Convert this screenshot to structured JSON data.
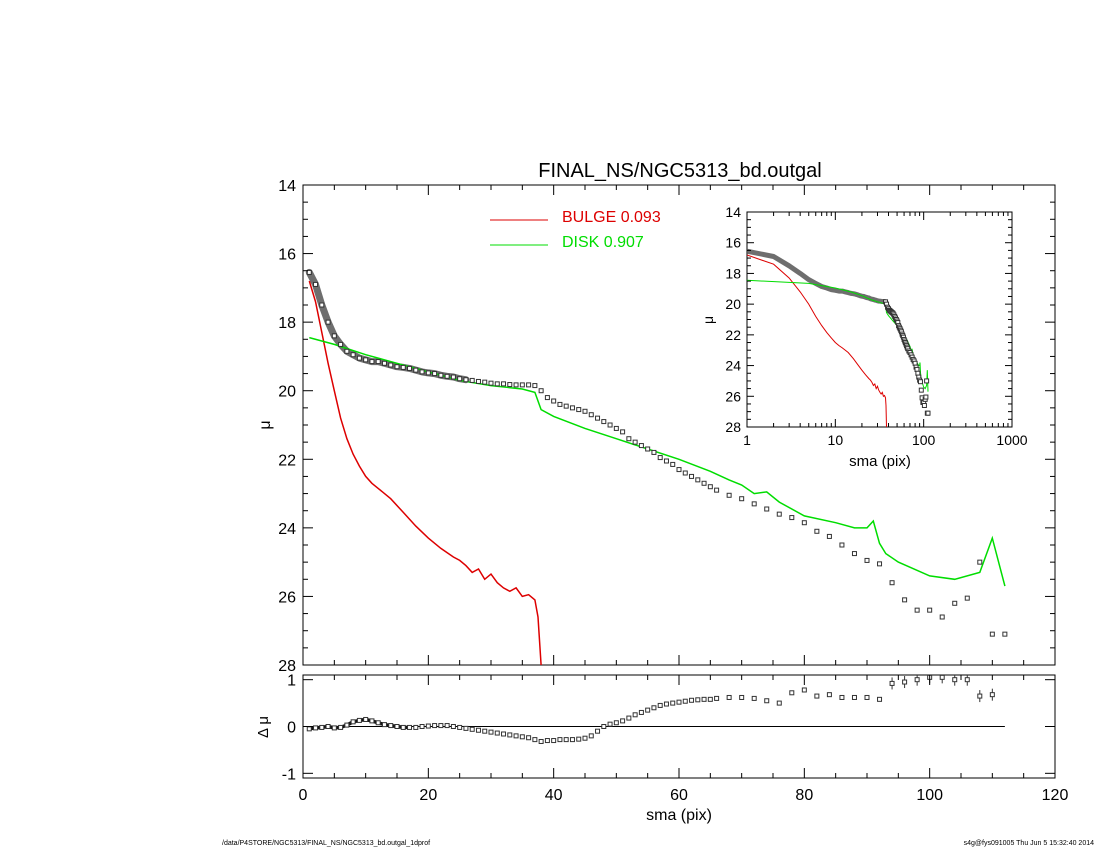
{
  "chart_data": {
    "title": "FINAL_NS/NGC5313_bd.outgal",
    "legend": {
      "placement": "top-center",
      "entries": [
        {
          "label": "BULGE  0.093",
          "color": "#dd0000"
        },
        {
          "label": "DISK  0.907",
          "color": "#00dd00"
        }
      ]
    },
    "main": {
      "type": "line",
      "ylabel": "μ",
      "xlim": [
        0,
        120
      ],
      "ylim": [
        14,
        28
      ],
      "y_inverted": true,
      "yticks": [
        14,
        16,
        18,
        20,
        22,
        24,
        26,
        28
      ],
      "data_points": {
        "name": "data",
        "symbol": "square",
        "x": [
          1,
          2,
          3,
          4,
          5,
          6,
          7,
          8,
          9,
          10,
          11,
          12,
          13,
          14,
          15,
          16,
          17,
          18,
          19,
          20,
          21,
          22,
          23,
          24,
          25,
          26,
          27,
          28,
          29,
          30,
          31,
          32,
          33,
          34,
          35,
          36,
          37,
          38,
          39,
          40,
          41,
          42,
          43,
          44,
          45,
          46,
          47,
          48,
          49,
          50,
          51,
          52,
          53,
          54,
          55,
          56,
          57,
          58,
          59,
          60,
          61,
          62,
          63,
          64,
          65,
          66,
          68,
          70,
          72,
          74,
          76,
          78,
          80,
          82,
          84,
          86,
          88,
          90,
          92,
          94,
          96,
          98,
          100,
          102,
          104,
          106,
          108,
          110,
          112
        ],
        "y": [
          16.55,
          16.9,
          17.5,
          18.0,
          18.4,
          18.65,
          18.85,
          18.95,
          19.05,
          19.1,
          19.15,
          19.15,
          19.2,
          19.25,
          19.3,
          19.32,
          19.35,
          19.4,
          19.45,
          19.48,
          19.5,
          19.55,
          19.58,
          19.6,
          19.65,
          19.68,
          19.7,
          19.73,
          19.75,
          19.78,
          19.8,
          19.8,
          19.82,
          19.83,
          19.83,
          19.83,
          19.85,
          20.0,
          20.2,
          20.3,
          20.4,
          20.45,
          20.5,
          20.55,
          20.6,
          20.7,
          20.8,
          20.9,
          21.0,
          21.1,
          21.2,
          21.4,
          21.5,
          21.6,
          21.7,
          21.8,
          21.95,
          22.05,
          22.15,
          22.3,
          22.4,
          22.5,
          22.6,
          22.7,
          22.8,
          22.9,
          23.05,
          23.15,
          23.3,
          23.45,
          23.6,
          23.7,
          23.85,
          24.1,
          24.25,
          24.5,
          24.75,
          24.95,
          25.05,
          25.6,
          26.1,
          26.4,
          26.4,
          26.6,
          26.2,
          26.05,
          25.0,
          27.1,
          27.1
        ]
      },
      "bulge": {
        "name": "BULGE",
        "x": [
          1,
          2,
          3,
          4,
          5,
          6,
          7,
          8,
          9,
          10,
          11,
          12,
          14,
          16,
          18,
          20,
          22,
          24,
          25,
          26,
          27,
          28,
          29,
          30,
          31,
          32,
          33,
          34,
          35,
          36,
          37,
          37.5,
          38
        ],
        "y": [
          16.8,
          17.4,
          18.3,
          19.2,
          20.0,
          20.8,
          21.4,
          21.85,
          22.2,
          22.5,
          22.7,
          22.85,
          23.15,
          23.55,
          23.95,
          24.3,
          24.6,
          24.85,
          24.95,
          25.1,
          25.3,
          25.2,
          25.5,
          25.35,
          25.6,
          25.75,
          25.85,
          25.75,
          26.0,
          25.95,
          26.1,
          26.6,
          28.0
        ]
      },
      "disk": {
        "name": "DISK",
        "x": [
          1,
          5,
          10,
          15,
          20,
          25,
          30,
          35,
          37,
          38,
          40,
          45,
          50,
          55,
          60,
          65,
          68,
          70,
          72,
          74,
          76,
          80,
          85,
          88,
          90,
          91,
          92,
          93,
          95,
          100,
          104,
          108,
          110,
          112
        ],
        "y": [
          18.45,
          18.65,
          18.95,
          19.2,
          19.45,
          19.7,
          19.85,
          19.95,
          20.05,
          20.55,
          20.75,
          21.1,
          21.4,
          21.7,
          22.0,
          22.35,
          22.6,
          22.75,
          23.0,
          22.95,
          23.25,
          23.65,
          23.85,
          24.0,
          24.0,
          23.8,
          24.45,
          24.75,
          25.0,
          25.4,
          25.5,
          25.3,
          24.3,
          25.7
        ]
      }
    },
    "residual": {
      "type": "scatter",
      "xlabel": "sma (pix)",
      "ylabel": "Δ μ",
      "xlim": [
        0,
        120
      ],
      "ylim": [
        -1.1,
        1.1
      ],
      "xticks": [
        0,
        20,
        40,
        60,
        80,
        100,
        120
      ],
      "yticks": [
        -1,
        0,
        1
      ],
      "reference_line": 0,
      "x": [
        1,
        2,
        3,
        4,
        5,
        6,
        7,
        8,
        9,
        10,
        11,
        12,
        13,
        14,
        15,
        16,
        17,
        18,
        19,
        20,
        21,
        22,
        23,
        24,
        25,
        26,
        27,
        28,
        29,
        30,
        31,
        32,
        33,
        34,
        35,
        36,
        37,
        38,
        39,
        40,
        41,
        42,
        43,
        44,
        45,
        46,
        47,
        48,
        49,
        50,
        51,
        52,
        53,
        54,
        55,
        56,
        57,
        58,
        59,
        60,
        61,
        62,
        63,
        64,
        65,
        66,
        68,
        70,
        72,
        74,
        76,
        78,
        80,
        82,
        84,
        86,
        88,
        90,
        92,
        94,
        96,
        98,
        100,
        102,
        104,
        106,
        108,
        110
      ],
      "y": [
        -0.05,
        -0.03,
        -0.02,
        0.0,
        -0.03,
        -0.02,
        0.03,
        0.1,
        0.13,
        0.15,
        0.12,
        0.08,
        0.04,
        0.02,
        0.0,
        -0.02,
        -0.02,
        -0.02,
        0.0,
        0.01,
        0.02,
        0.02,
        0.02,
        0.0,
        -0.02,
        -0.04,
        -0.06,
        -0.08,
        -0.1,
        -0.12,
        -0.14,
        -0.16,
        -0.18,
        -0.2,
        -0.22,
        -0.24,
        -0.28,
        -0.32,
        -0.3,
        -0.3,
        -0.28,
        -0.28,
        -0.28,
        -0.27,
        -0.25,
        -0.2,
        -0.1,
        0.0,
        0.05,
        0.08,
        0.12,
        0.18,
        0.25,
        0.3,
        0.35,
        0.4,
        0.45,
        0.48,
        0.5,
        0.52,
        0.54,
        0.56,
        0.57,
        0.58,
        0.58,
        0.6,
        0.62,
        0.62,
        0.6,
        0.55,
        0.5,
        0.72,
        0.78,
        0.65,
        0.68,
        0.62,
        0.62,
        0.62,
        0.58,
        0.92,
        0.95,
        1.0,
        1.05,
        1.05,
        1.0,
        1.0,
        0.65,
        0.68
      ]
    },
    "inset": {
      "type": "line",
      "xlabel": "sma (pix)",
      "ylabel": "μ",
      "x_scale": "log",
      "xlim": [
        1,
        1000
      ],
      "ylim": [
        14,
        28
      ],
      "y_inverted": true,
      "xticks": [
        1,
        10,
        100,
        1000
      ],
      "yticks": [
        14,
        16,
        18,
        20,
        22,
        24,
        26,
        28
      ]
    }
  },
  "footer": {
    "left": "/data/P4STORE/NGC5313/FINAL_NS/NGC5313_bd.outgal_1dprof",
    "right": "s4g@fys091005  Thu Jun  5 15:32:40 2014"
  }
}
